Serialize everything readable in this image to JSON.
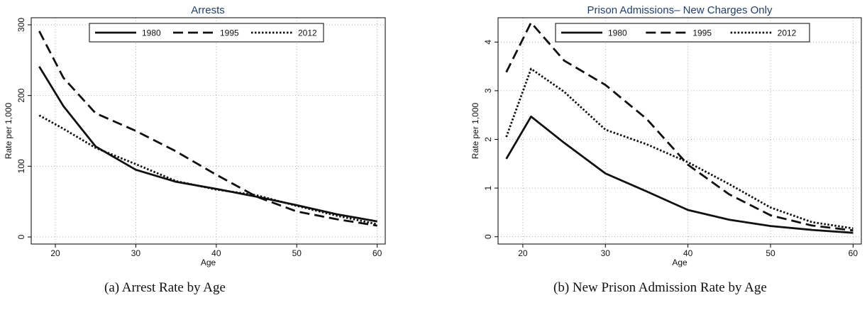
{
  "chart_data": [
    {
      "type": "line",
      "title": "Arrests",
      "xlabel": "Age",
      "ylabel": "Rate per 1,000",
      "caption": "(a)  Arrest Rate by Age",
      "xlim": [
        17,
        61
      ],
      "ylim": [
        -10,
        310
      ],
      "xticks": [
        "20",
        "30",
        "40",
        "50",
        "60"
      ],
      "yticks": [
        "0",
        "100",
        "200",
        "300"
      ],
      "grid": true,
      "legend_position": "top-center",
      "series": [
        {
          "name": "1980",
          "style": "solid",
          "x": [
            18,
            21,
            25,
            30,
            35,
            40,
            45,
            50,
            55,
            60
          ],
          "y": [
            241,
            185,
            128,
            95,
            78,
            68,
            57,
            45,
            32,
            22
          ]
        },
        {
          "name": "1995",
          "style": "dashed",
          "x": [
            18,
            21,
            25,
            30,
            35,
            40,
            45,
            50,
            55,
            60
          ],
          "y": [
            291,
            225,
            175,
            150,
            121,
            88,
            57,
            36,
            25,
            16
          ]
        },
        {
          "name": "2012",
          "style": "dotted",
          "x": [
            18,
            21,
            25,
            30,
            35,
            40,
            45,
            50,
            55,
            60
          ],
          "y": [
            172,
            153,
            126,
            103,
            79,
            67,
            59,
            44,
            30,
            18
          ]
        }
      ]
    },
    {
      "type": "line",
      "title": "Prison Admissions– New Charges Only",
      "xlabel": "Age",
      "ylabel": "Rate per 1,000",
      "caption": "(b)  New Prison Admission Rate by Age",
      "xlim": [
        17,
        61
      ],
      "ylim": [
        -0.15,
        4.5
      ],
      "xticks": [
        "20",
        "30",
        "40",
        "50",
        "60"
      ],
      "yticks": [
        "0",
        "1",
        "2",
        "3",
        "4"
      ],
      "grid": true,
      "legend_position": "top-center",
      "series": [
        {
          "name": "1980",
          "style": "solid",
          "x": [
            18,
            21,
            25,
            30,
            35,
            40,
            45,
            50,
            55,
            60
          ],
          "y": [
            1.6,
            2.47,
            1.93,
            1.3,
            0.93,
            0.55,
            0.35,
            0.22,
            0.14,
            0.08
          ]
        },
        {
          "name": "1995",
          "style": "dashed",
          "x": [
            18,
            21,
            25,
            30,
            35,
            40,
            45,
            50,
            55,
            60
          ],
          "y": [
            3.38,
            4.4,
            3.62,
            3.12,
            2.42,
            1.48,
            0.87,
            0.44,
            0.23,
            0.13
          ]
        },
        {
          "name": "2012",
          "style": "dotted",
          "x": [
            18,
            21,
            25,
            30,
            35,
            40,
            45,
            50,
            55,
            60
          ],
          "y": [
            2.05,
            3.45,
            2.98,
            2.2,
            1.9,
            1.53,
            1.08,
            0.6,
            0.3,
            0.17
          ]
        }
      ]
    }
  ],
  "colors": {
    "title": "#1f3f6b",
    "line": "#111111",
    "grid": "#9a9a9a",
    "frame": "#000000"
  }
}
